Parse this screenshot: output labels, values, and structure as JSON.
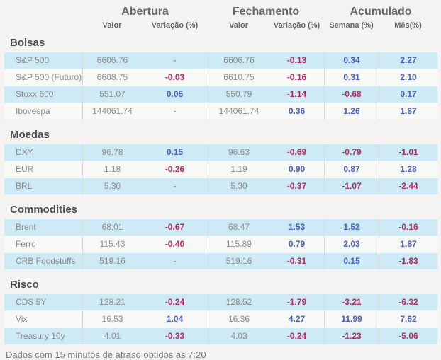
{
  "chart_data": {
    "type": "table",
    "column_groups": [
      {
        "label": "Abertura"
      },
      {
        "label": "Fechamento"
      },
      {
        "label": "Acumulado"
      }
    ],
    "columns": [
      "Valor",
      "Variação (%)",
      "Valor",
      "Variação (%)",
      "Semana (%)",
      "Mês(%)"
    ],
    "sections": [
      {
        "title": "Bolsas",
        "rows": [
          {
            "label": "S&P 500",
            "values": [
              "6606.76",
              "-",
              "6606.76",
              "-0.13",
              "0.34",
              "2.27"
            ]
          },
          {
            "label": "S&P 500 (Futuro)",
            "values": [
              "6608.75",
              "-0.03",
              "6610.75",
              "-0.16",
              "0.31",
              "2.10"
            ]
          },
          {
            "label": "Stoxx 600",
            "values": [
              "551.07",
              "0.05",
              "550.79",
              "-1.14",
              "-0.68",
              "0.17"
            ]
          },
          {
            "label": "Ibovespa",
            "values": [
              "144061.74",
              "-",
              "144061.74",
              "0.36",
              "1.26",
              "1.87"
            ]
          }
        ]
      },
      {
        "title": "Moedas",
        "rows": [
          {
            "label": "DXY",
            "values": [
              "96.78",
              "0.15",
              "96.63",
              "-0.69",
              "-0.79",
              "-1.01"
            ]
          },
          {
            "label": "EUR",
            "values": [
              "1.18",
              "-0.26",
              "1.19",
              "0.90",
              "0.87",
              "1.28"
            ]
          },
          {
            "label": "BRL",
            "values": [
              "5.30",
              "-",
              "5.30",
              "-0.37",
              "-1.07",
              "-2.44"
            ]
          }
        ]
      },
      {
        "title": "Commodities",
        "rows": [
          {
            "label": "Brent",
            "values": [
              "68.01",
              "-0.67",
              "68.47",
              "1.53",
              "1.52",
              "-0.16"
            ]
          },
          {
            "label": "Ferro",
            "values": [
              "115.43",
              "-0.40",
              "115.89",
              "0.79",
              "2.03",
              "1.87"
            ]
          },
          {
            "label": "CRB Foodstuffs",
            "values": [
              "519.16",
              "-",
              "519.16",
              "-0.31",
              "0.15",
              "-1.83"
            ]
          }
        ]
      },
      {
        "title": "Risco",
        "rows": [
          {
            "label": "CDS 5Y",
            "values": [
              "128.21",
              "-0.24",
              "128.52",
              "-1.79",
              "-3.21",
              "-6.32"
            ]
          },
          {
            "label": "Vix",
            "values": [
              "16.53",
              "1.04",
              "16.36",
              "4.27",
              "11.99",
              "7.62"
            ]
          },
          {
            "label": "Treasury 10y",
            "values": [
              "4.01",
              "-0.33",
              "4.03",
              "-0.24",
              "-1.23",
              "-5.06"
            ]
          }
        ]
      }
    ],
    "footnote": "Dados com 15 minutos de atraso obtidos as 7:20"
  },
  "colors": {
    "positive": "#4760c8",
    "negative": "#b52a5f",
    "row_highlight": "#cdeaf5",
    "row_plain": "#f8f8f6",
    "background": "#f4f3f1"
  }
}
